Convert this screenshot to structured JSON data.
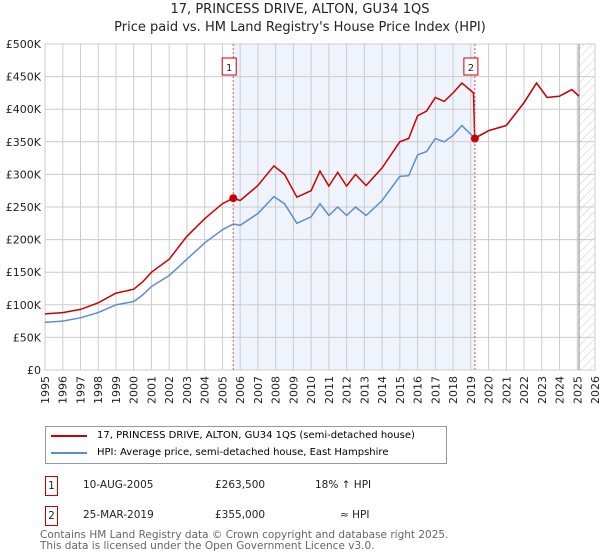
{
  "chart_data": {
    "type": "line",
    "title": "17, PRINCESS DRIVE, ALTON, GU34 1QS",
    "subtitle": "Price paid vs. HM Land Registry's House Price Index (HPI)",
    "xlim": [
      1995,
      2026
    ],
    "ylim": [
      0,
      500000
    ],
    "grid": true,
    "x_ticks": [
      "1995",
      "1996",
      "1997",
      "1998",
      "1999",
      "2000",
      "2001",
      "2002",
      "2003",
      "2004",
      "2005",
      "2006",
      "2007",
      "2008",
      "2009",
      "2010",
      "2011",
      "2012",
      "2013",
      "2014",
      "2015",
      "2016",
      "2017",
      "2018",
      "2019",
      "2020",
      "2021",
      "2022",
      "2023",
      "2024",
      "2025",
      "2026"
    ],
    "y_ticks": [
      {
        "v": 0,
        "label": "£0"
      },
      {
        "v": 50000,
        "label": "£50K"
      },
      {
        "v": 100000,
        "label": "£100K"
      },
      {
        "v": 150000,
        "label": "£150K"
      },
      {
        "v": 200000,
        "label": "£200K"
      },
      {
        "v": 250000,
        "label": "£250K"
      },
      {
        "v": 300000,
        "label": "£300K"
      },
      {
        "v": 350000,
        "label": "£350K"
      },
      {
        "v": 400000,
        "label": "£400K"
      },
      {
        "v": 450000,
        "label": "£450K"
      },
      {
        "v": 500000,
        "label": "£500K"
      }
    ],
    "series": [
      {
        "name": "17, PRINCESS DRIVE, ALTON, GU34 1QS (semi-detached house)",
        "color": "#cc0000",
        "x": [
          1995,
          1996,
          1997,
          1998,
          1999,
          2000,
          2000.5,
          2001,
          2002,
          2003,
          2004,
          2005,
          2005.6,
          2006,
          2007,
          2007.9,
          2008.5,
          2009.2,
          2010,
          2010.5,
          2011,
          2011.5,
          2012,
          2012.5,
          2013.1,
          2014,
          2015,
          2015.5,
          2016,
          2016.5,
          2017,
          2017.5,
          2018,
          2018.5,
          2019.15,
          2019.22,
          2020,
          2021,
          2022,
          2022.7,
          2023.3,
          2024,
          2024.7,
          2025.1
        ],
        "y": [
          86000,
          88000,
          93000,
          103000,
          118000,
          124000,
          135000,
          150000,
          170000,
          205000,
          232000,
          255000,
          263500,
          260000,
          283000,
          313000,
          300000,
          265000,
          275000,
          305000,
          282000,
          303000,
          282000,
          300000,
          283000,
          310000,
          350000,
          355000,
          390000,
          397000,
          418000,
          412000,
          425000,
          440000,
          425000,
          355000,
          367000,
          375000,
          410000,
          440000,
          418000,
          420000,
          430000,
          420000
        ]
      },
      {
        "name": "HPI: Average price, semi-detached house, East Hampshire",
        "color": "#5b8fd0",
        "x": [
          1995,
          1996,
          1997,
          1998,
          1999,
          2000,
          2000.5,
          2001,
          2002,
          2003,
          2004,
          2005,
          2005.6,
          2006,
          2007,
          2007.9,
          2008.5,
          2009.2,
          2010,
          2010.5,
          2011,
          2011.5,
          2012,
          2012.5,
          2013.1,
          2014,
          2015,
          2015.5,
          2016,
          2016.5,
          2017,
          2017.5,
          2018,
          2018.5,
          2019.2,
          2020,
          2021,
          2022,
          2022.7,
          2023.3,
          2024,
          2024.7,
          2025.1
        ],
        "y": [
          73000,
          75000,
          80000,
          88000,
          100000,
          105000,
          115000,
          128000,
          145000,
          170000,
          195000,
          215000,
          224000,
          222000,
          240000,
          266000,
          255000,
          225000,
          235000,
          255000,
          237000,
          250000,
          237000,
          250000,
          237000,
          260000,
          297000,
          298000,
          330000,
          335000,
          355000,
          350000,
          360000,
          375000,
          356000,
          367000,
          375000,
          410000,
          440000,
          418000,
          420000,
          430000,
          420000
        ]
      }
    ],
    "annotations": [
      {
        "label": "1",
        "x": 2005.61,
        "y": 263500
      },
      {
        "label": "2",
        "x": 2019.23,
        "y": 355000
      }
    ],
    "legend_position": "bottom"
  },
  "legend": {
    "red_label": "17, PRINCESS DRIVE, ALTON, GU34 1QS (semi-detached house)",
    "blue_label": "HPI: Average price, semi-detached house, East Hampshire"
  },
  "transactions": [
    {
      "num": "1",
      "date": "10-AUG-2005",
      "price": "£263,500",
      "hpi": "18% ↑ HPI"
    },
    {
      "num": "2",
      "date": "25-MAR-2019",
      "price": "£355,000",
      "hpi": "≈ HPI"
    }
  ],
  "footer": {
    "line1": "Contains HM Land Registry data © Crown copyright and database right 2025.",
    "line2": "This data is licensed under the Open Government Licence v3.0."
  }
}
